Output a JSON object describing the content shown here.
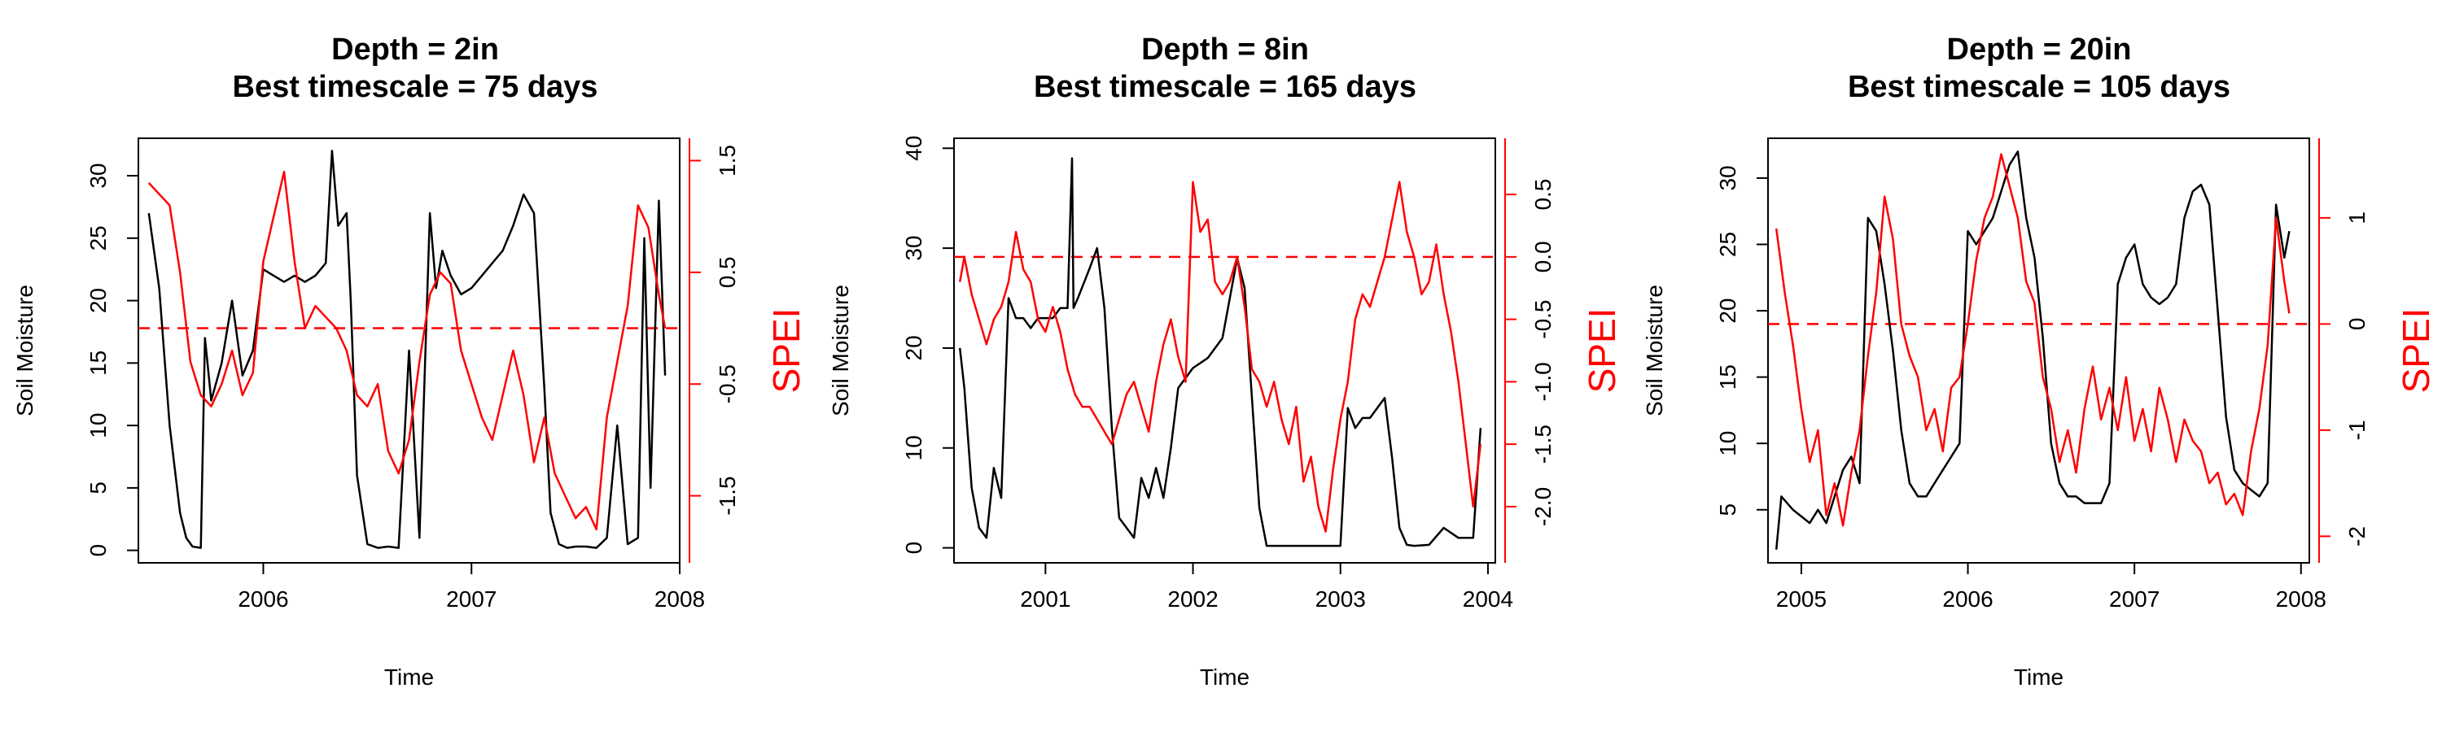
{
  "chart_data": [
    {
      "type": "line",
      "title": "Depth = 2in",
      "subtitle": "Best timescale = 75 days",
      "xlabel": "Time",
      "ylabel": "Soil Moisture",
      "y2label": "SPEI",
      "xticks": [
        "2006",
        "2007",
        "2008"
      ],
      "xlim": [
        2005.4,
        2008.0
      ],
      "ylim": [
        -1.0,
        33.0
      ],
      "yticks": [
        0,
        5,
        10,
        15,
        20,
        25,
        30
      ],
      "y2lim": [
        -2.1,
        1.7
      ],
      "y2ticks": [
        -1.5,
        -0.5,
        0.5,
        1.5
      ],
      "y2ticklabels": [
        "-1.5",
        "-0.5",
        "0.5",
        "1.5"
      ],
      "reference_line": {
        "axis": "y2",
        "value": 0,
        "style": "dashed"
      },
      "series": [
        {
          "axis": "y",
          "color": "#000000",
          "x": [
            2005.45,
            2005.5,
            2005.55,
            2005.6,
            2005.63,
            2005.66,
            2005.7,
            2005.72,
            2005.75,
            2005.8,
            2005.85,
            2005.9,
            2005.95,
            2006.0,
            2006.05,
            2006.1,
            2006.15,
            2006.2,
            2006.25,
            2006.3,
            2006.33,
            2006.36,
            2006.4,
            2006.42,
            2006.45,
            2006.5,
            2006.55,
            2006.6,
            2006.65,
            2006.7,
            2006.75,
            2006.8,
            2006.83,
            2006.86,
            2006.9,
            2006.95,
            2007.0,
            2007.05,
            2007.1,
            2007.15,
            2007.2,
            2007.25,
            2007.3,
            2007.35,
            2007.38,
            2007.42,
            2007.46,
            2007.5,
            2007.55,
            2007.6,
            2007.65,
            2007.7,
            2007.75,
            2007.8,
            2007.83,
            2007.86,
            2007.9,
            2007.93
          ],
          "y": [
            27,
            21,
            10,
            3,
            1,
            0.3,
            0.2,
            17,
            12,
            15,
            20,
            14,
            16,
            22.5,
            22,
            21.5,
            22,
            21.5,
            22,
            23,
            32,
            26,
            27,
            20,
            6,
            0.5,
            0.2,
            0.3,
            0.2,
            16,
            1,
            27,
            21,
            24,
            22,
            20.5,
            21,
            22,
            23,
            24,
            26,
            28.5,
            27,
            13,
            3,
            0.5,
            0.2,
            0.3,
            0.3,
            0.2,
            1,
            10,
            0.5,
            1,
            25,
            5,
            28,
            14
          ]
        },
        {
          "axis": "y2",
          "color": "#ff0000",
          "x": [
            2005.45,
            2005.5,
            2005.55,
            2005.6,
            2005.65,
            2005.7,
            2005.75,
            2005.8,
            2005.85,
            2005.9,
            2005.95,
            2006.0,
            2006.05,
            2006.1,
            2006.15,
            2006.2,
            2006.25,
            2006.3,
            2006.35,
            2006.4,
            2006.45,
            2006.5,
            2006.55,
            2006.6,
            2006.65,
            2006.7,
            2006.75,
            2006.8,
            2006.85,
            2006.9,
            2006.95,
            2007.0,
            2007.05,
            2007.1,
            2007.15,
            2007.2,
            2007.25,
            2007.3,
            2007.35,
            2007.4,
            2007.45,
            2007.5,
            2007.55,
            2007.6,
            2007.65,
            2007.7,
            2007.75,
            2007.8,
            2007.85,
            2007.9,
            2007.93
          ],
          "y": [
            1.3,
            1.2,
            1.1,
            0.5,
            -0.3,
            -0.6,
            -0.7,
            -0.5,
            -0.2,
            -0.6,
            -0.4,
            0.6,
            1.0,
            1.4,
            0.6,
            0.0,
            0.2,
            0.1,
            0.0,
            -0.2,
            -0.6,
            -0.7,
            -0.5,
            -1.1,
            -1.3,
            -1.0,
            -0.3,
            0.3,
            0.5,
            0.4,
            -0.2,
            -0.5,
            -0.8,
            -1.0,
            -0.6,
            -0.2,
            -0.6,
            -1.2,
            -0.8,
            -1.3,
            -1.5,
            -1.7,
            -1.6,
            -1.8,
            -0.8,
            -0.3,
            0.2,
            1.1,
            0.9,
            0.3,
            0.0
          ]
        }
      ]
    },
    {
      "type": "line",
      "title": "Depth = 8in",
      "subtitle": "Best timescale = 165 days",
      "xlabel": "Time",
      "ylabel": "Soil Moisture",
      "y2label": "SPEI",
      "xticks": [
        "2001",
        "2002",
        "2003",
        "2004"
      ],
      "xlim": [
        2000.38,
        2004.05
      ],
      "ylim": [
        -1.5,
        41.0
      ],
      "yticks": [
        0,
        10,
        20,
        30,
        40
      ],
      "y2lim": [
        -2.45,
        0.95
      ],
      "y2ticks": [
        -2.0,
        -1.5,
        -1.0,
        -0.5,
        0.0,
        0.5
      ],
      "y2ticklabels": [
        "-2.0",
        "-1.5",
        "-1.0",
        "-0.5",
        "0.0",
        "0.5"
      ],
      "reference_line": {
        "axis": "y2",
        "value": 0,
        "style": "dashed"
      },
      "series": [
        {
          "axis": "y",
          "color": "#000000",
          "x": [
            2000.42,
            2000.45,
            2000.5,
            2000.55,
            2000.6,
            2000.65,
            2000.7,
            2000.75,
            2000.8,
            2000.85,
            2000.9,
            2000.95,
            2001.0,
            2001.05,
            2001.1,
            2001.15,
            2001.18,
            2001.19,
            2001.22,
            2001.3,
            2001.35,
            2001.4,
            2001.45,
            2001.5,
            2001.55,
            2001.6,
            2001.65,
            2001.7,
            2001.75,
            2001.8,
            2001.85,
            2001.9,
            2001.95,
            2002.0,
            2002.1,
            2002.2,
            2002.3,
            2002.35,
            2002.4,
            2002.45,
            2002.5,
            2002.6,
            2002.7,
            2002.8,
            2002.9,
            2003.0,
            2003.05,
            2003.1,
            2003.15,
            2003.2,
            2003.25,
            2003.3,
            2003.35,
            2003.4,
            2003.45,
            2003.5,
            2003.6,
            2003.7,
            2003.8,
            2003.9,
            2003.95
          ],
          "y": [
            20,
            16,
            6,
            2,
            1,
            8,
            5,
            25,
            23,
            23,
            22,
            23,
            23,
            23,
            24,
            24,
            39,
            24,
            25,
            28,
            30,
            24,
            12,
            3,
            2,
            1,
            7,
            5,
            8,
            5,
            10,
            16,
            17,
            18,
            19,
            21,
            29,
            26,
            15,
            4,
            0.2,
            0.2,
            0.2,
            0.2,
            0.2,
            0.2,
            14,
            12,
            13,
            13,
            14,
            15,
            9,
            2,
            0.3,
            0.2,
            0.3,
            2,
            1,
            1,
            12
          ]
        },
        {
          "axis": "y2",
          "color": "#ff0000",
          "x": [
            2000.42,
            2000.45,
            2000.5,
            2000.55,
            2000.6,
            2000.65,
            2000.7,
            2000.75,
            2000.8,
            2000.85,
            2000.9,
            2000.95,
            2001.0,
            2001.05,
            2001.1,
            2001.15,
            2001.2,
            2001.25,
            2001.3,
            2001.35,
            2001.4,
            2001.45,
            2001.5,
            2001.55,
            2001.6,
            2001.65,
            2001.7,
            2001.75,
            2001.8,
            2001.85,
            2001.9,
            2001.95,
            2002.0,
            2002.05,
            2002.1,
            2002.15,
            2002.2,
            2002.25,
            2002.3,
            2002.35,
            2002.4,
            2002.45,
            2002.5,
            2002.55,
            2002.6,
            2002.65,
            2002.7,
            2002.75,
            2002.8,
            2002.85,
            2002.9,
            2002.95,
            2003.0,
            2003.05,
            2003.1,
            2003.15,
            2003.2,
            2003.25,
            2003.3,
            2003.35,
            2003.4,
            2003.45,
            2003.5,
            2003.55,
            2003.6,
            2003.65,
            2003.7,
            2003.75,
            2003.8,
            2003.85,
            2003.9,
            2003.95
          ],
          "y": [
            -0.2,
            0.0,
            -0.3,
            -0.5,
            -0.7,
            -0.5,
            -0.4,
            -0.2,
            0.2,
            -0.1,
            -0.2,
            -0.5,
            -0.6,
            -0.4,
            -0.6,
            -0.9,
            -1.1,
            -1.2,
            -1.2,
            -1.3,
            -1.4,
            -1.5,
            -1.3,
            -1.1,
            -1.0,
            -1.2,
            -1.4,
            -1.0,
            -0.7,
            -0.5,
            -0.8,
            -1.0,
            0.6,
            0.2,
            0.3,
            -0.2,
            -0.3,
            -0.2,
            0.0,
            -0.4,
            -0.9,
            -1.0,
            -1.2,
            -1.0,
            -1.3,
            -1.5,
            -1.2,
            -1.8,
            -1.6,
            -2.0,
            -2.2,
            -1.7,
            -1.3,
            -1.0,
            -0.5,
            -0.3,
            -0.4,
            -0.2,
            0.0,
            0.3,
            0.6,
            0.2,
            0.0,
            -0.3,
            -0.2,
            0.1,
            -0.3,
            -0.6,
            -1.0,
            -1.5,
            -2.0,
            -1.5
          ]
        }
      ]
    },
    {
      "type": "line",
      "title": "Depth = 20in",
      "subtitle": "Best timescale = 105 days",
      "xlabel": "Time",
      "ylabel": "Soil Moisture",
      "y2label": "SPEI",
      "xticks": [
        "2005",
        "2006",
        "2007",
        "2008"
      ],
      "xlim": [
        2004.8,
        2008.05
      ],
      "ylim": [
        1.0,
        33.0
      ],
      "yticks": [
        5,
        10,
        15,
        20,
        25,
        30
      ],
      "y2lim": [
        -2.25,
        1.75
      ],
      "y2ticks": [
        -2,
        -1,
        0,
        1
      ],
      "y2ticklabels": [
        "-2",
        "-1",
        "0",
        "1"
      ],
      "reference_line": {
        "axis": "y2",
        "value": 0,
        "style": "dashed"
      },
      "series": [
        {
          "axis": "y",
          "color": "#000000",
          "x": [
            2004.85,
            2004.88,
            2004.95,
            2005.0,
            2005.05,
            2005.1,
            2005.15,
            2005.2,
            2005.25,
            2005.3,
            2005.35,
            2005.4,
            2005.45,
            2005.5,
            2005.55,
            2005.6,
            2005.65,
            2005.7,
            2005.75,
            2005.8,
            2005.85,
            2005.9,
            2005.95,
            2006.0,
            2006.05,
            2006.1,
            2006.15,
            2006.2,
            2006.25,
            2006.3,
            2006.35,
            2006.4,
            2006.45,
            2006.5,
            2006.55,
            2006.6,
            2006.65,
            2006.7,
            2006.75,
            2006.8,
            2006.85,
            2006.9,
            2006.95,
            2007.0,
            2007.05,
            2007.1,
            2007.15,
            2007.2,
            2007.25,
            2007.3,
            2007.35,
            2007.4,
            2007.45,
            2007.5,
            2007.55,
            2007.6,
            2007.65,
            2007.7,
            2007.75,
            2007.8,
            2007.85,
            2007.9,
            2007.93
          ],
          "y": [
            2,
            6,
            5,
            4.5,
            4,
            5,
            4,
            6,
            8,
            9,
            7,
            27,
            26,
            22,
            17,
            11,
            7,
            6,
            6,
            7,
            8,
            9,
            10,
            26,
            25,
            26,
            27,
            29,
            31,
            32,
            27,
            24,
            18,
            10,
            7,
            6,
            6,
            5.5,
            5.5,
            5.5,
            7,
            22,
            24,
            25,
            22,
            21,
            20.5,
            21,
            22,
            27,
            29,
            29.5,
            28,
            20,
            12,
            8,
            7,
            6.5,
            6,
            7,
            28,
            24,
            26
          ]
        },
        {
          "axis": "y2",
          "color": "#ff0000",
          "x": [
            2004.85,
            2004.9,
            2004.95,
            2005.0,
            2005.05,
            2005.1,
            2005.15,
            2005.2,
            2005.25,
            2005.3,
            2005.35,
            2005.4,
            2005.45,
            2005.5,
            2005.55,
            2005.6,
            2005.65,
            2005.7,
            2005.75,
            2005.8,
            2005.85,
            2005.9,
            2005.95,
            2006.0,
            2006.05,
            2006.1,
            2006.15,
            2006.2,
            2006.25,
            2006.3,
            2006.35,
            2006.4,
            2006.45,
            2006.5,
            2006.55,
            2006.6,
            2006.65,
            2006.7,
            2006.75,
            2006.8,
            2006.85,
            2006.9,
            2006.95,
            2007.0,
            2007.05,
            2007.1,
            2007.15,
            2007.2,
            2007.25,
            2007.3,
            2007.35,
            2007.4,
            2007.45,
            2007.5,
            2007.55,
            2007.6,
            2007.65,
            2007.7,
            2007.75,
            2007.8,
            2007.85,
            2007.9,
            2007.93
          ],
          "y": [
            0.9,
            0.3,
            -0.2,
            -0.8,
            -1.3,
            -1.0,
            -1.8,
            -1.5,
            -1.9,
            -1.4,
            -1.0,
            -0.3,
            0.3,
            1.2,
            0.8,
            0.0,
            -0.3,
            -0.5,
            -1.0,
            -0.8,
            -1.2,
            -0.6,
            -0.5,
            0.0,
            0.6,
            1.0,
            1.2,
            1.6,
            1.3,
            1.0,
            0.4,
            0.2,
            -0.5,
            -0.8,
            -1.3,
            -1.0,
            -1.4,
            -0.8,
            -0.4,
            -0.9,
            -0.6,
            -1.0,
            -0.5,
            -1.1,
            -0.8,
            -1.2,
            -0.6,
            -0.9,
            -1.3,
            -0.9,
            -1.1,
            -1.2,
            -1.5,
            -1.4,
            -1.7,
            -1.6,
            -1.8,
            -1.2,
            -0.8,
            -0.2,
            1.0,
            0.4,
            0.1
          ]
        }
      ]
    }
  ]
}
